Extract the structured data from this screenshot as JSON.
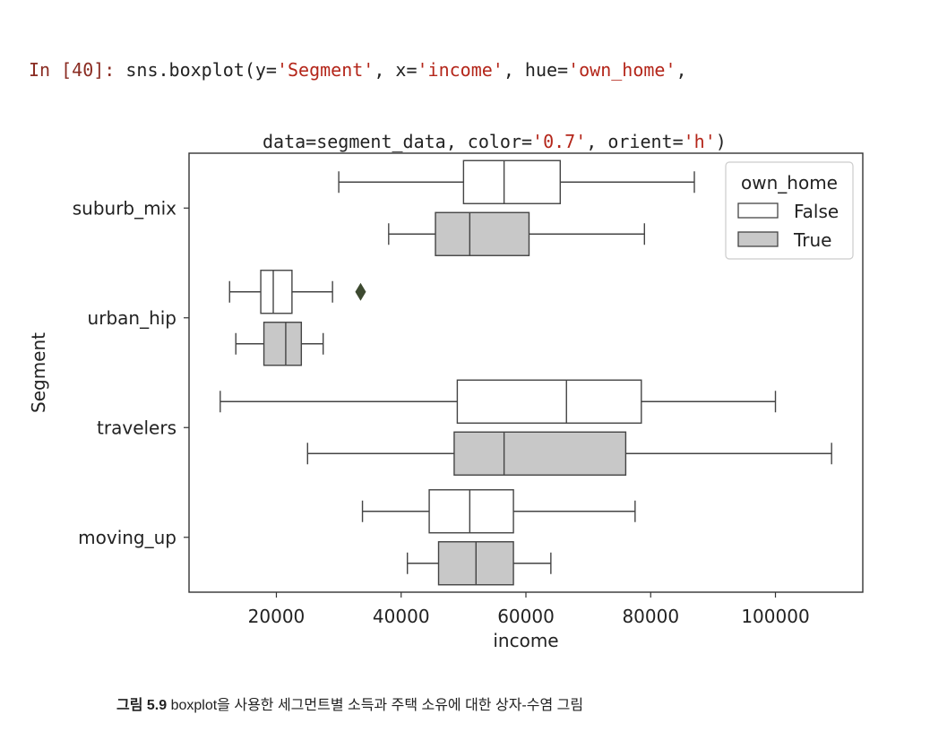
{
  "code": {
    "prompt": "In [40]:",
    "line1_parts": [
      {
        "t": " sns.boxplot(y=",
        "c": "plain"
      },
      {
        "t": "'Segment'",
        "c": "str"
      },
      {
        "t": ", x=",
        "c": "plain"
      },
      {
        "t": "'income'",
        "c": "str"
      },
      {
        "t": ", hue=",
        "c": "plain"
      },
      {
        "t": "'own_home'",
        "c": "str"
      },
      {
        "t": ",",
        "c": "plain"
      }
    ],
    "line2_parts": [
      {
        "t": "data=segment_data, color=",
        "c": "plain"
      },
      {
        "t": "'0.7'",
        "c": "str"
      },
      {
        "t": ", orient=",
        "c": "plain"
      },
      {
        "t": "'h'",
        "c": "str"
      },
      {
        "t": ")",
        "c": "plain"
      }
    ]
  },
  "chart_data": {
    "type": "boxplot",
    "orient": "h",
    "xlabel": "income",
    "ylabel": "Segment",
    "xlim": [
      6000,
      114000
    ],
    "xticks": [
      20000,
      40000,
      60000,
      80000,
      100000
    ],
    "xtick_labels": [
      "20000",
      "40000",
      "60000",
      "80000",
      "100000"
    ],
    "categories": [
      "suburb_mix",
      "urban_hip",
      "travelers",
      "moving_up"
    ],
    "legend": {
      "title": "own_home",
      "placement": "top-right",
      "entries": [
        {
          "label": "False",
          "fill": "#ffffff"
        },
        {
          "label": "True",
          "fill": "#c8c8c8"
        }
      ]
    },
    "series": [
      {
        "name": "False",
        "fill": "#ffffff",
        "boxes": [
          {
            "category": "suburb_mix",
            "whislo": 30000,
            "q1": 50000,
            "med": 56500,
            "q3": 65500,
            "whishi": 87000,
            "fliers": []
          },
          {
            "category": "urban_hip",
            "whislo": 12500,
            "q1": 17500,
            "med": 19500,
            "q3": 22500,
            "whishi": 29000,
            "fliers": [
              33500
            ]
          },
          {
            "category": "travelers",
            "whislo": 11000,
            "q1": 49000,
            "med": 66500,
            "q3": 78500,
            "whishi": 100000,
            "fliers": []
          },
          {
            "category": "moving_up",
            "whislo": 33800,
            "q1": 44500,
            "med": 51000,
            "q3": 58000,
            "whishi": 77500,
            "fliers": []
          }
        ]
      },
      {
        "name": "True",
        "fill": "#c8c8c8",
        "boxes": [
          {
            "category": "suburb_mix",
            "whislo": 38000,
            "q1": 45500,
            "med": 51000,
            "q3": 60500,
            "whishi": 79000,
            "fliers": []
          },
          {
            "category": "urban_hip",
            "whislo": 13500,
            "q1": 18000,
            "med": 21500,
            "q3": 24000,
            "whishi": 27500,
            "fliers": []
          },
          {
            "category": "travelers",
            "whislo": 25000,
            "q1": 48500,
            "med": 56500,
            "q3": 76000,
            "whishi": 109000,
            "fliers": []
          },
          {
            "category": "moving_up",
            "whislo": 41000,
            "q1": 46000,
            "med": 52000,
            "q3": 58000,
            "whishi": 64000,
            "fliers": []
          }
        ]
      }
    ]
  },
  "caption": {
    "label": "그림 5.9",
    "text": " boxplot을 사용한 세그먼트별 소득과 주택 소유에 대한 상자-수염 그림"
  },
  "colors": {
    "code_prompt": "#8a2c22",
    "code_string": "#b4261a",
    "box_edge": "#444444",
    "flier": "#3d4a30"
  }
}
